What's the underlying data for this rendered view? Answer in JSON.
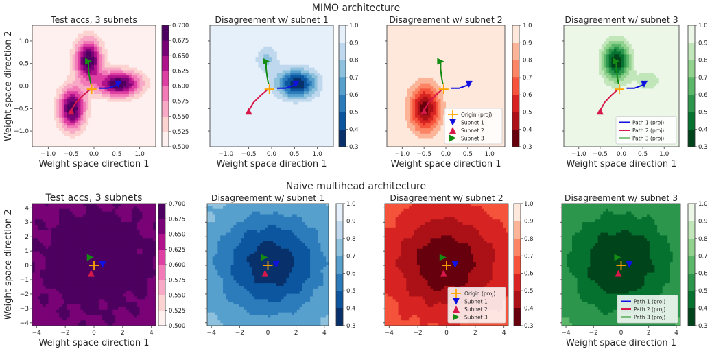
{
  "figure": {
    "row_titles": [
      "MIMO architecture",
      "Naive multihead architecture"
    ]
  },
  "colors": {
    "path1": "#1010e0",
    "path2": "#d6184a",
    "path3": "#148c14",
    "origin": "#ffa500",
    "axes_edge": "#333333"
  },
  "chart_data": [
    {
      "id": "mimo-acc",
      "type": "heatmap",
      "title": "Test accs, 3 subnets",
      "xlabel": "Weight space direction 1",
      "ylabel": "Weight space direction 2",
      "xlim": [
        -1.35,
        1.35
      ],
      "ylim": [
        -1.35,
        1.35
      ],
      "xticks": [
        -1.0,
        -0.5,
        0.0,
        0.5,
        1.0
      ],
      "yticks": [
        -1.0,
        -0.5,
        0.0,
        0.5,
        1.0
      ],
      "colormap": "RdPu",
      "colorbar": {
        "ticks": [
          "0.500",
          "0.525",
          "0.550",
          "0.575",
          "0.600",
          "0.625",
          "0.650",
          "0.675",
          "0.700"
        ],
        "range": [
          0.5,
          0.7
        ]
      },
      "background_value": 0.5,
      "field": {
        "base": 0.5,
        "bumps": [
          {
            "x": -0.12,
            "y": 0.58,
            "sx": 0.2,
            "sy": 0.32,
            "amp": 0.2
          },
          {
            "x": 0.55,
            "y": 0.05,
            "sx": 0.33,
            "sy": 0.2,
            "amp": 0.2
          },
          {
            "x": -0.48,
            "y": -0.5,
            "sx": 0.2,
            "sy": 0.32,
            "amp": 0.2
          }
        ],
        "invert": false
      },
      "paths": [
        {
          "series": "Path 1 (proj)",
          "points": [
            [
              0.12,
              -0.05
            ],
            [
              0.3,
              -0.05
            ],
            [
              0.45,
              0.0
            ],
            [
              0.53,
              0.04
            ]
          ]
        },
        {
          "series": "Path 2 (proj)",
          "points": [
            [
              -0.1,
              -0.09
            ],
            [
              -0.25,
              -0.22
            ],
            [
              -0.4,
              -0.37
            ],
            [
              -0.5,
              -0.55
            ]
          ]
        },
        {
          "series": "Path 3 (proj)",
          "points": [
            [
              -0.07,
              0.05
            ],
            [
              -0.1,
              0.22
            ],
            [
              -0.12,
              0.38
            ],
            [
              -0.12,
              0.55
            ]
          ]
        }
      ],
      "markers": [
        {
          "series": "Origin (proj)",
          "x": -0.05,
          "y": -0.07,
          "shape": "plus"
        },
        {
          "series": "Subnet 1",
          "x": 0.53,
          "y": 0.04,
          "shape": "down"
        },
        {
          "series": "Subnet 2",
          "x": -0.5,
          "y": -0.56,
          "shape": "up"
        },
        {
          "series": "Subnet 3",
          "x": -0.12,
          "y": 0.55,
          "shape": "right"
        }
      ],
      "show_ylabels": true
    },
    {
      "id": "mimo-dis1",
      "type": "heatmap",
      "title": "Disagreement w/ subnet 1",
      "xlabel": "Weight space direction 1",
      "ylabel": "",
      "xlim": [
        -1.35,
        1.35
      ],
      "ylim": [
        -1.35,
        1.35
      ],
      "xticks": [
        -1.0,
        -0.5,
        0.0,
        0.5,
        1.0
      ],
      "yticks": [
        -1.0,
        -0.5,
        0.0,
        0.5,
        1.0
      ],
      "colormap": "Blues_r",
      "colorbar": {
        "ticks": [
          "0.3",
          "0.4",
          "0.5",
          "0.6",
          "0.7",
          "0.8",
          "0.9",
          "1.0"
        ],
        "range": [
          0.3,
          1.0
        ]
      },
      "field": {
        "base": 1.0,
        "bumps": [
          {
            "x": 0.55,
            "y": 0.05,
            "sx": 0.3,
            "sy": 0.22,
            "amp": -0.7
          },
          {
            "x": -0.1,
            "y": 0.6,
            "sx": 0.18,
            "sy": 0.22,
            "amp": -0.22
          }
        ]
      },
      "paths": [
        {
          "series": "Path 1 (proj)",
          "points": [
            [
              0.12,
              -0.05
            ],
            [
              0.3,
              -0.05
            ],
            [
              0.45,
              0.0
            ],
            [
              0.53,
              0.04
            ]
          ]
        },
        {
          "series": "Path 2 (proj)",
          "points": [
            [
              -0.1,
              -0.09
            ],
            [
              -0.25,
              -0.22
            ],
            [
              -0.4,
              -0.37
            ],
            [
              -0.5,
              -0.55
            ]
          ]
        },
        {
          "series": "Path 3 (proj)",
          "points": [
            [
              -0.07,
              0.05
            ],
            [
              -0.1,
              0.22
            ],
            [
              -0.12,
              0.38
            ],
            [
              -0.12,
              0.55
            ]
          ]
        }
      ],
      "markers": [
        {
          "series": "Origin (proj)",
          "x": -0.05,
          "y": -0.07,
          "shape": "plus"
        },
        {
          "series": "Subnet 1",
          "x": 0.53,
          "y": 0.04,
          "shape": "down"
        },
        {
          "series": "Subnet 2",
          "x": -0.5,
          "y": -0.56,
          "shape": "up"
        },
        {
          "series": "Subnet 3",
          "x": -0.12,
          "y": 0.55,
          "shape": "right"
        }
      ],
      "show_ylabels": false
    },
    {
      "id": "mimo-dis2",
      "type": "heatmap",
      "title": "Disagreement w/ subnet 2",
      "xlabel": "Weight space direction 1",
      "ylabel": "",
      "xlim": [
        -1.35,
        1.35
      ],
      "ylim": [
        -1.35,
        1.35
      ],
      "xticks": [
        -1.0,
        -0.5,
        0.0,
        0.5,
        1.0
      ],
      "yticks": [
        -1.0,
        -0.5,
        0.0,
        0.5,
        1.0
      ],
      "colormap": "Reds_r",
      "colorbar": {
        "ticks": [
          "0.3",
          "0.4",
          "0.5",
          "0.6",
          "0.7",
          "0.8",
          "0.9",
          "1.0"
        ],
        "range": [
          0.3,
          1.0
        ]
      },
      "field": {
        "base": 1.0,
        "bumps": [
          {
            "x": -0.48,
            "y": -0.5,
            "sx": 0.24,
            "sy": 0.36,
            "amp": -0.65
          }
        ]
      },
      "paths": [
        {
          "series": "Path 1 (proj)",
          "points": [
            [
              0.12,
              -0.05
            ],
            [
              0.3,
              -0.05
            ],
            [
              0.45,
              0.0
            ],
            [
              0.53,
              0.04
            ]
          ]
        },
        {
          "series": "Path 2 (proj)",
          "points": [
            [
              -0.1,
              -0.09
            ],
            [
              -0.25,
              -0.22
            ],
            [
              -0.4,
              -0.37
            ],
            [
              -0.5,
              -0.55
            ]
          ]
        },
        {
          "series": "Path 3 (proj)",
          "points": [
            [
              -0.07,
              0.05
            ],
            [
              -0.1,
              0.22
            ],
            [
              -0.12,
              0.38
            ],
            [
              -0.12,
              0.55
            ]
          ]
        }
      ],
      "markers": [
        {
          "series": "Origin (proj)",
          "x": -0.05,
          "y": -0.07,
          "shape": "plus"
        },
        {
          "series": "Subnet 1",
          "x": 0.53,
          "y": 0.04,
          "shape": "down"
        },
        {
          "series": "Subnet 2",
          "x": -0.5,
          "y": -0.56,
          "shape": "up"
        },
        {
          "series": "Subnet 3",
          "x": -0.12,
          "y": 0.55,
          "shape": "right"
        }
      ],
      "legend": {
        "placement": "lower-right",
        "entries": [
          "Origin (proj)",
          "Subnet 1",
          "Subnet 2",
          "Subnet 3"
        ]
      },
      "show_ylabels": false
    },
    {
      "id": "mimo-dis3",
      "type": "heatmap",
      "title": "Disagreement w/ subnet 3",
      "xlabel": "Weight space direction 1",
      "ylabel": "",
      "xlim": [
        -1.35,
        1.35
      ],
      "ylim": [
        -1.35,
        1.35
      ],
      "xticks": [
        -1.0,
        -0.5,
        0.0,
        0.5,
        1.0
      ],
      "yticks": [
        -1.0,
        -0.5,
        0.0,
        0.5,
        1.0
      ],
      "colormap": "Greens_r",
      "colorbar": {
        "ticks": [
          "0.3",
          "0.4",
          "0.5",
          "0.6",
          "0.7",
          "0.8",
          "0.9",
          "1.0"
        ],
        "range": [
          0.3,
          1.0
        ]
      },
      "field": {
        "base": 1.0,
        "bumps": [
          {
            "x": -0.12,
            "y": 0.55,
            "sx": 0.22,
            "sy": 0.3,
            "amp": -0.7
          },
          {
            "x": 0.62,
            "y": 0.12,
            "sx": 0.22,
            "sy": 0.16,
            "amp": -0.18
          }
        ]
      },
      "paths": [
        {
          "series": "Path 1 (proj)",
          "points": [
            [
              0.12,
              -0.05
            ],
            [
              0.3,
              -0.05
            ],
            [
              0.45,
              0.0
            ],
            [
              0.53,
              0.04
            ]
          ]
        },
        {
          "series": "Path 2 (proj)",
          "points": [
            [
              -0.1,
              -0.09
            ],
            [
              -0.25,
              -0.22
            ],
            [
              -0.4,
              -0.37
            ],
            [
              -0.5,
              -0.55
            ]
          ]
        },
        {
          "series": "Path 3 (proj)",
          "points": [
            [
              -0.07,
              0.05
            ],
            [
              -0.1,
              0.22
            ],
            [
              -0.12,
              0.38
            ],
            [
              -0.12,
              0.55
            ]
          ]
        }
      ],
      "markers": [
        {
          "series": "Origin (proj)",
          "x": -0.05,
          "y": -0.07,
          "shape": "plus"
        },
        {
          "series": "Subnet 1",
          "x": 0.53,
          "y": 0.04,
          "shape": "down"
        },
        {
          "series": "Subnet 2",
          "x": -0.5,
          "y": -0.56,
          "shape": "up"
        },
        {
          "series": "Subnet 3",
          "x": -0.12,
          "y": 0.55,
          "shape": "right"
        }
      ],
      "legend": {
        "placement": "lower-right",
        "entries": [
          "Path 1 (proj)",
          "Path 2 (proj)",
          "Path 3 (proj)"
        ]
      },
      "show_ylabels": false
    },
    {
      "id": "naive-acc",
      "type": "heatmap",
      "title": "Test accs, 3 subnets",
      "xlabel": "Weight space direction 1",
      "ylabel": "Weight space direction 2",
      "xlim": [
        -4.3,
        4.3
      ],
      "ylim": [
        -4.2,
        4.3
      ],
      "xticks": [
        -4,
        -2,
        0,
        2,
        4
      ],
      "yticks": [
        -4,
        -3,
        -2,
        -1,
        0,
        1,
        2,
        3,
        4
      ],
      "colormap": "RdPu",
      "colorbar": {
        "ticks": [
          "0.500",
          "0.525",
          "0.550",
          "0.575",
          "0.600",
          "0.625",
          "0.650",
          "0.675",
          "0.700"
        ],
        "range": [
          0.5,
          0.7
        ]
      },
      "field": {
        "base": 0.66,
        "bumps": [
          {
            "x": 0.2,
            "y": 0.3,
            "sx": 2.6,
            "sy": 2.4,
            "amp": 0.05
          }
        ],
        "wobble": 0.012
      },
      "paths": [],
      "markers": [
        {
          "series": "Origin (proj)",
          "x": 0.0,
          "y": 0.0,
          "shape": "plus"
        },
        {
          "series": "Subnet 1",
          "x": 0.6,
          "y": 0.05,
          "shape": "down"
        },
        {
          "series": "Subnet 2",
          "x": -0.2,
          "y": -0.55,
          "shape": "up"
        },
        {
          "series": "Subnet 3",
          "x": -0.25,
          "y": 0.55,
          "shape": "right"
        }
      ],
      "show_ylabels": true
    },
    {
      "id": "naive-dis1",
      "type": "heatmap",
      "title": "Disagreement w/ subnet 1",
      "xlabel": "",
      "ylabel": "",
      "xlim": [
        -4.3,
        4.3
      ],
      "ylim": [
        -4.2,
        4.3
      ],
      "xticks": [
        -4,
        -2,
        0,
        2,
        4
      ],
      "yticks": [
        -4,
        -3,
        -2,
        -1,
        0,
        1,
        2,
        3,
        4
      ],
      "colormap": "Blues_r",
      "colorbar": {
        "ticks": [
          "0.3",
          "0.4",
          "0.5",
          "0.6",
          "0.7",
          "0.8",
          "0.9",
          "1.0"
        ],
        "range": [
          0.3,
          1.0
        ]
      },
      "field": {
        "base": 0.75,
        "bumps": [
          {
            "x": 0.2,
            "y": 0.1,
            "sx": 2.7,
            "sy": 2.5,
            "amp": -0.42
          }
        ],
        "wobble": 0.02
      },
      "paths": [],
      "markers": [
        {
          "series": "Origin (proj)",
          "x": 0.0,
          "y": 0.0,
          "shape": "plus"
        },
        {
          "series": "Subnet 1",
          "x": 0.6,
          "y": 0.05,
          "shape": "down"
        },
        {
          "series": "Subnet 2",
          "x": -0.2,
          "y": -0.55,
          "shape": "up"
        },
        {
          "series": "Subnet 3",
          "x": -0.25,
          "y": 0.55,
          "shape": "right"
        }
      ],
      "show_ylabels": false
    },
    {
      "id": "naive-dis2",
      "type": "heatmap",
      "title": "Disagreement w/ subnet 2",
      "xlabel": "",
      "ylabel": "",
      "xlim": [
        -4.3,
        4.3
      ],
      "ylim": [
        -4.2,
        4.3
      ],
      "xticks": [
        -4,
        -2,
        0,
        2,
        4
      ],
      "yticks": [
        -4,
        -3,
        -2,
        -1,
        0,
        1,
        2,
        3,
        4
      ],
      "colormap": "Reds_r",
      "colorbar": {
        "ticks": [
          "0.3",
          "0.4",
          "0.5",
          "0.6",
          "0.7",
          "0.8",
          "0.9",
          "1.0"
        ],
        "range": [
          0.3,
          1.0
        ]
      },
      "field": {
        "base": 0.68,
        "bumps": [
          {
            "x": 0.0,
            "y": 0.2,
            "sx": 2.8,
            "sy": 2.6,
            "amp": -0.36
          }
        ],
        "wobble": 0.02
      },
      "paths": [],
      "markers": [
        {
          "series": "Origin (proj)",
          "x": 0.0,
          "y": 0.0,
          "shape": "plus"
        },
        {
          "series": "Subnet 1",
          "x": 0.6,
          "y": 0.05,
          "shape": "down"
        },
        {
          "series": "Subnet 2",
          "x": -0.2,
          "y": -0.55,
          "shape": "up"
        },
        {
          "series": "Subnet 3",
          "x": -0.25,
          "y": 0.55,
          "shape": "right"
        }
      ],
      "legend": {
        "placement": "lower-right",
        "entries": [
          "Origin (proj)",
          "Subnet 1",
          "Subnet 2",
          "Subnet 3"
        ]
      },
      "show_ylabels": false
    },
    {
      "id": "naive-dis3",
      "type": "heatmap",
      "title": "Disagreement w/ subnet 3",
      "xlabel": "Weight space direction 1",
      "ylabel": "",
      "xlim": [
        -4.3,
        4.3
      ],
      "ylim": [
        -4.2,
        4.3
      ],
      "xticks": [
        -4,
        -2,
        0,
        2,
        4
      ],
      "yticks": [
        -4,
        -3,
        -2,
        -1,
        0,
        1,
        2,
        3,
        4
      ],
      "colormap": "Greens_r",
      "colorbar": {
        "ticks": [
          "0.3",
          "0.4",
          "0.5",
          "0.6",
          "0.7",
          "0.8",
          "0.9",
          "1.0"
        ],
        "range": [
          0.3,
          1.0
        ]
      },
      "field": {
        "base": 0.62,
        "bumps": [
          {
            "x": 0.0,
            "y": 0.2,
            "sx": 2.7,
            "sy": 2.5,
            "amp": -0.32
          }
        ],
        "wobble": 0.02
      },
      "paths": [],
      "markers": [
        {
          "series": "Origin (proj)",
          "x": 0.0,
          "y": 0.0,
          "shape": "plus"
        },
        {
          "series": "Subnet 1",
          "x": 0.6,
          "y": 0.05,
          "shape": "down"
        },
        {
          "series": "Subnet 2",
          "x": -0.2,
          "y": -0.55,
          "shape": "up"
        },
        {
          "series": "Subnet 3",
          "x": -0.25,
          "y": 0.55,
          "shape": "right"
        }
      ],
      "legend": {
        "placement": "lower-right",
        "entries": [
          "Path 1 (proj)",
          "Path 2 (proj)",
          "Path 3 (proj)"
        ]
      },
      "show_ylabels": false
    }
  ]
}
